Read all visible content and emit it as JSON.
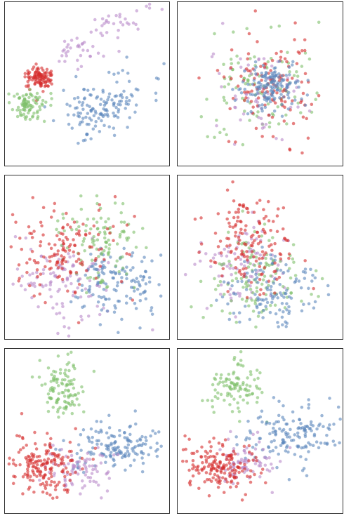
{
  "figure": {
    "rows": 2,
    "cols": 3,
    "marker": {
      "size": 2.3,
      "opacity": 0.6
    },
    "colors": {
      "red": "#d62d2d",
      "green": "#7fbf6a",
      "purple": "#b98ac9",
      "blue": "#5b87bd",
      "frame": "#333333",
      "background": "#ffffff"
    }
  },
  "chart_data": [
    {
      "type": "scatter",
      "title": "",
      "xlabel": "",
      "ylabel": "",
      "xlim": [
        0,
        100
      ],
      "ylim": [
        0,
        100
      ],
      "grid": false,
      "clusters": [
        {
          "color": "purple",
          "count": 70,
          "center": [
            40,
            68
          ],
          "sd": [
            7,
            5
          ],
          "stretch": [
            [
              0,
              0
            ],
            [
              55,
              -40
            ]
          ]
        },
        {
          "color": "red",
          "count": 110,
          "center": [
            21,
            54
          ],
          "sd": [
            5,
            3.5
          ]
        },
        {
          "color": "green",
          "count": 90,
          "center": [
            14,
            37
          ],
          "sd": [
            6,
            4
          ]
        },
        {
          "color": "blue",
          "count": 140,
          "center": [
            52,
            30
          ],
          "sd": [
            9,
            7
          ],
          "stretch": [
            [
              0,
              0
            ],
            [
              30,
              -20
            ]
          ]
        }
      ]
    },
    {
      "type": "scatter",
      "title": "",
      "xlabel": "",
      "ylabel": "",
      "xlim": [
        0,
        100
      ],
      "ylim": [
        0,
        100
      ],
      "grid": false,
      "clusters": [
        {
          "color": "green",
          "count": 100,
          "center": [
            48,
            50
          ],
          "sd": [
            18,
            18
          ]
        },
        {
          "color": "purple",
          "count": 60,
          "center": [
            50,
            45
          ],
          "sd": [
            15,
            14
          ]
        },
        {
          "color": "red",
          "count": 120,
          "center": [
            55,
            48
          ],
          "sd": [
            14,
            16
          ]
        },
        {
          "color": "blue",
          "count": 150,
          "center": [
            57,
            48
          ],
          "sd": [
            9,
            7
          ]
        }
      ]
    },
    {
      "type": "scatter",
      "title": "",
      "xlabel": "",
      "ylabel": "",
      "xlim": [
        0,
        100
      ],
      "ylim": [
        0,
        100
      ],
      "grid": false,
      "clusters": [
        {
          "color": "purple",
          "count": 110,
          "center": [
            35,
            35
          ],
          "sd": [
            16,
            12
          ]
        },
        {
          "color": "blue",
          "count": 130,
          "center": [
            68,
            36
          ],
          "sd": [
            13,
            12
          ]
        },
        {
          "color": "green",
          "count": 110,
          "center": [
            60,
            60
          ],
          "sd": [
            12,
            14
          ]
        },
        {
          "color": "red",
          "count": 150,
          "center": [
            35,
            55
          ],
          "sd": [
            17,
            14
          ]
        }
      ]
    },
    {
      "type": "scatter",
      "title": "",
      "xlabel": "",
      "ylabel": "",
      "xlim": [
        0,
        100
      ],
      "ylim": [
        0,
        100
      ],
      "grid": false,
      "clusters": [
        {
          "color": "purple",
          "count": 90,
          "center": [
            40,
            45
          ],
          "sd": [
            15,
            13
          ]
        },
        {
          "color": "green",
          "count": 120,
          "center": [
            48,
            38
          ],
          "sd": [
            15,
            14
          ]
        },
        {
          "color": "blue",
          "count": 120,
          "center": [
            58,
            28
          ],
          "sd": [
            14,
            11
          ]
        },
        {
          "color": "red",
          "count": 150,
          "center": [
            45,
            58
          ],
          "sd": [
            13,
            15
          ]
        }
      ]
    },
    {
      "type": "scatter",
      "title": "",
      "xlabel": "",
      "ylabel": "",
      "xlim": [
        0,
        100
      ],
      "ylim": [
        0,
        100
      ],
      "grid": false,
      "clusters": [
        {
          "color": "green",
          "count": 110,
          "center": [
            35,
            77
          ],
          "sd": [
            7,
            8
          ]
        },
        {
          "color": "blue",
          "count": 150,
          "center": [
            68,
            40
          ],
          "sd": [
            14,
            8
          ]
        },
        {
          "color": "purple",
          "count": 80,
          "center": [
            47,
            28
          ],
          "sd": [
            10,
            7
          ]
        },
        {
          "color": "red",
          "count": 180,
          "center": [
            23,
            28
          ],
          "sd": [
            11,
            9
          ]
        }
      ]
    },
    {
      "type": "scatter",
      "title": "",
      "xlabel": "",
      "ylabel": "",
      "xlim": [
        0,
        100
      ],
      "ylim": [
        0,
        100
      ],
      "grid": false,
      "clusters": [
        {
          "color": "green",
          "count": 100,
          "center": [
            35,
            77
          ],
          "sd": [
            8,
            7
          ]
        },
        {
          "color": "blue",
          "count": 150,
          "center": [
            70,
            48
          ],
          "sd": [
            14,
            10
          ]
        },
        {
          "color": "purple",
          "count": 80,
          "center": [
            40,
            30
          ],
          "sd": [
            11,
            8
          ]
        },
        {
          "color": "red",
          "count": 170,
          "center": [
            25,
            28
          ],
          "sd": [
            10,
            8
          ]
        }
      ]
    }
  ]
}
